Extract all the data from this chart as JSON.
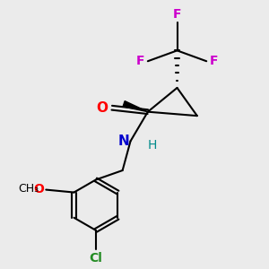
{
  "bg_color": "#ebebeb",
  "atom_colors": {
    "C": "#000000",
    "N": "#0000cd",
    "O": "#ff0000",
    "F": "#cc00cc",
    "Cl": "#228b22",
    "H": "#008b8b"
  },
  "bond_color": "#000000",
  "lw": 1.5,
  "fs": 11
}
